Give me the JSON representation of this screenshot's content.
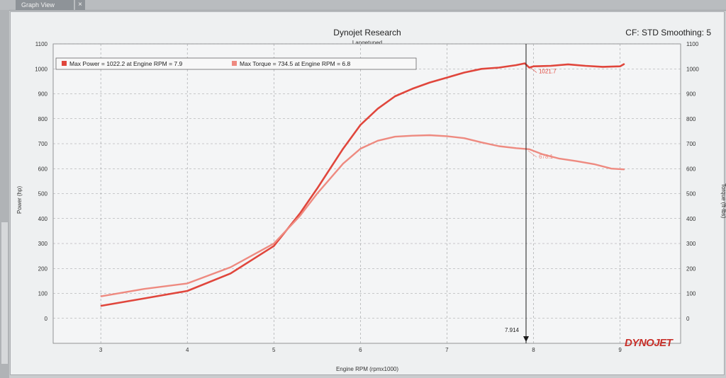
{
  "window": {
    "tab_label": "Graph View",
    "close_glyph": "×"
  },
  "header": {
    "title": "Dynojet Research",
    "subtitle": "Langetuned",
    "cf_label": "CF: STD Smoothing: 5"
  },
  "legend": [
    {
      "text": "Max Power = 1022.2 at Engine RPM = 7.9",
      "color": "#e0463c"
    },
    {
      "text": "Max Torque = 734.5 at Engine RPM = 6.8",
      "color": "#ee8a80"
    }
  ],
  "cursor": {
    "x_label": "7.914",
    "power_label": "1021.7",
    "torque_label": "678.1"
  },
  "logo": "DYNOJET",
  "colors": {
    "power": "#e0463c",
    "torque": "#ee8a80",
    "grid": "#9a9c9e",
    "cursor": "#1a1a1a"
  },
  "chart_data": {
    "type": "line",
    "xlabel": "Engine RPM (rpmx1000)",
    "ylabel_left": "Power (hp)",
    "ylabel_right": "Torque (ft-lbs)",
    "xlim": [
      2.45,
      9.7
    ],
    "ylim": [
      -100,
      1100
    ],
    "x_ticks": [
      3,
      4,
      5,
      6,
      7,
      8,
      9
    ],
    "y_ticks": [
      0,
      100,
      200,
      300,
      400,
      500,
      600,
      700,
      800,
      900,
      1000,
      1100
    ],
    "grid": true,
    "legend_position": "top-left",
    "series": [
      {
        "name": "Power",
        "x": [
          3.0,
          3.5,
          4.0,
          4.5,
          5.0,
          5.3,
          5.5,
          5.8,
          6.0,
          6.2,
          6.4,
          6.6,
          6.8,
          7.0,
          7.2,
          7.4,
          7.6,
          7.8,
          7.9,
          7.95,
          8.0,
          8.2,
          8.4,
          8.6,
          8.8,
          9.0,
          9.05
        ],
        "y": [
          50,
          80,
          110,
          180,
          290,
          420,
          520,
          680,
          775,
          840,
          890,
          920,
          945,
          965,
          985,
          1000,
          1005,
          1015,
          1022,
          1005,
          1010,
          1012,
          1018,
          1012,
          1008,
          1010,
          1020
        ]
      },
      {
        "name": "Torque",
        "x": [
          3.0,
          3.5,
          4.0,
          4.5,
          5.0,
          5.3,
          5.5,
          5.8,
          6.0,
          6.2,
          6.4,
          6.6,
          6.8,
          7.0,
          7.2,
          7.4,
          7.6,
          7.8,
          7.95,
          8.1,
          8.3,
          8.5,
          8.7,
          8.9,
          9.05
        ],
        "y": [
          88,
          118,
          140,
          205,
          300,
          410,
          500,
          620,
          680,
          712,
          728,
          732,
          734,
          730,
          722,
          705,
          690,
          682,
          678,
          658,
          640,
          630,
          618,
          600,
          597
        ]
      }
    ]
  }
}
